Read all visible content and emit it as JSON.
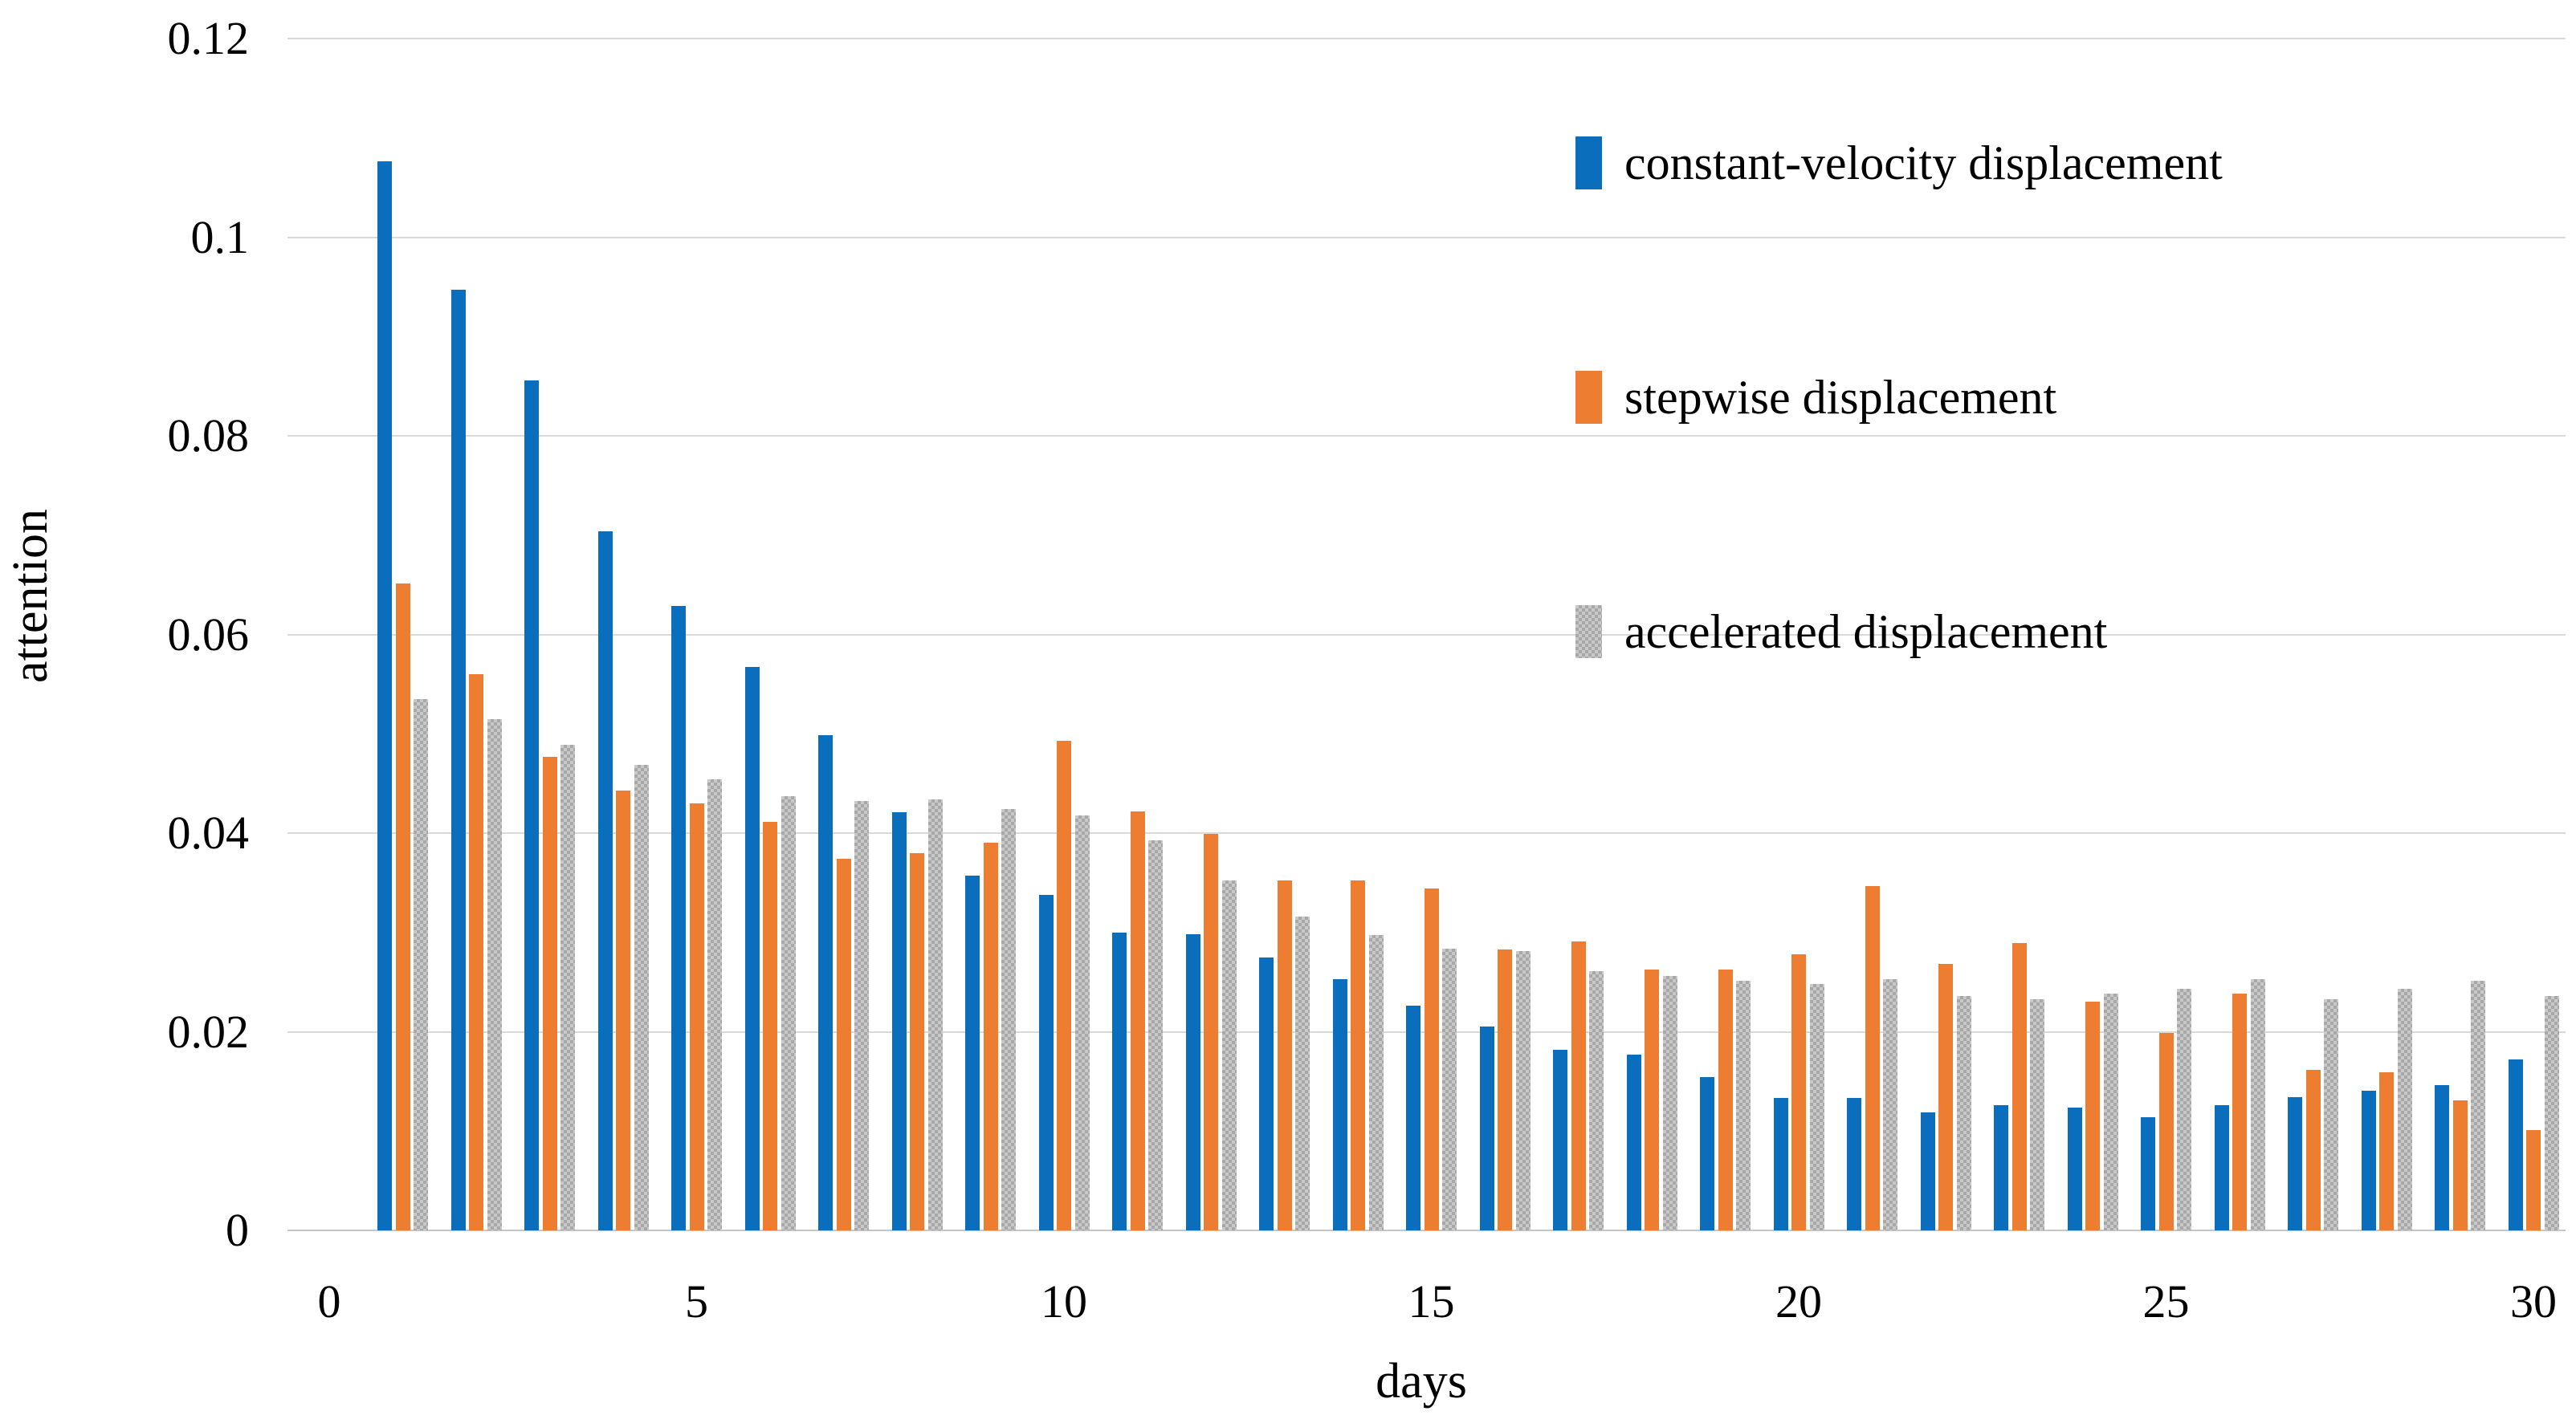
{
  "chart_data": {
    "type": "bar",
    "title": "",
    "xlabel": "days",
    "ylabel": "attention",
    "ylim": [
      0,
      0.12
    ],
    "grid": true,
    "legend_position": "top-right",
    "categories": [
      1,
      2,
      3,
      4,
      5,
      6,
      7,
      8,
      9,
      10,
      11,
      12,
      13,
      14,
      15,
      16,
      17,
      18,
      19,
      20,
      21,
      22,
      23,
      24,
      25,
      26,
      27,
      28,
      29,
      30
    ],
    "x_ticks": [
      {
        "v": 0,
        "label": "0"
      },
      {
        "v": 5,
        "label": "5"
      },
      {
        "v": 10,
        "label": "10"
      },
      {
        "v": 15,
        "label": "15"
      },
      {
        "v": 20,
        "label": "20"
      },
      {
        "v": 25,
        "label": "25"
      },
      {
        "v": 30,
        "label": "30"
      }
    ],
    "y_ticks": [
      {
        "v": 0,
        "label": "0"
      },
      {
        "v": 0.02,
        "label": "0.02"
      },
      {
        "v": 0.04,
        "label": "0.04"
      },
      {
        "v": 0.06,
        "label": "0.06"
      },
      {
        "v": 0.08,
        "label": "0.08"
      },
      {
        "v": 0.1,
        "label": "0.1"
      },
      {
        "v": 0.12,
        "label": "0.12"
      }
    ],
    "series": [
      {
        "name": "constant-velocity displacement",
        "color": "#0a6ebd",
        "values": [
          0.1076,
          0.0947,
          0.0856,
          0.0704,
          0.0629,
          0.0567,
          0.0499,
          0.0421,
          0.0357,
          0.0338,
          0.03,
          0.0298,
          0.0275,
          0.0253,
          0.0226,
          0.0205,
          0.0182,
          0.0177,
          0.0154,
          0.0133,
          0.0133,
          0.0119,
          0.0126,
          0.0124,
          0.0114,
          0.0126,
          0.0134,
          0.0141,
          0.0146,
          0.0172
        ]
      },
      {
        "name": "stepwise displacement",
        "color": "#ed7d31",
        "values": [
          0.0651,
          0.056,
          0.0477,
          0.0443,
          0.043,
          0.0411,
          0.0374,
          0.038,
          0.039,
          0.0493,
          0.0422,
          0.0399,
          0.0352,
          0.0352,
          0.0344,
          0.0283,
          0.0291,
          0.0263,
          0.0263,
          0.0278,
          0.0347,
          0.0268,
          0.0289,
          0.023,
          0.0199,
          0.0238,
          0.0162,
          0.0159,
          0.0131,
          0.0101
        ]
      },
      {
        "name": "accelerated displacement",
        "color": "#bdbdbd",
        "values": [
          0.0535,
          0.0515,
          0.0489,
          0.0469,
          0.0454,
          0.0437,
          0.0432,
          0.0434,
          0.0424,
          0.0418,
          0.0393,
          0.0352,
          0.0316,
          0.0297,
          0.0284,
          0.0281,
          0.0261,
          0.0256,
          0.0251,
          0.0248,
          0.0253,
          0.0236,
          0.0233,
          0.0238,
          0.0243,
          0.0253,
          0.0233,
          0.0243,
          0.0251,
          0.0236
        ]
      }
    ]
  },
  "axes": {
    "x_title": "days",
    "y_title": "attention"
  },
  "legend": {
    "items": [
      {
        "label": "constant-velocity displacement",
        "series": "blue"
      },
      {
        "label": "stepwise displacement",
        "series": "orange"
      },
      {
        "label": "accelerated displacement",
        "series": "gray"
      }
    ]
  }
}
